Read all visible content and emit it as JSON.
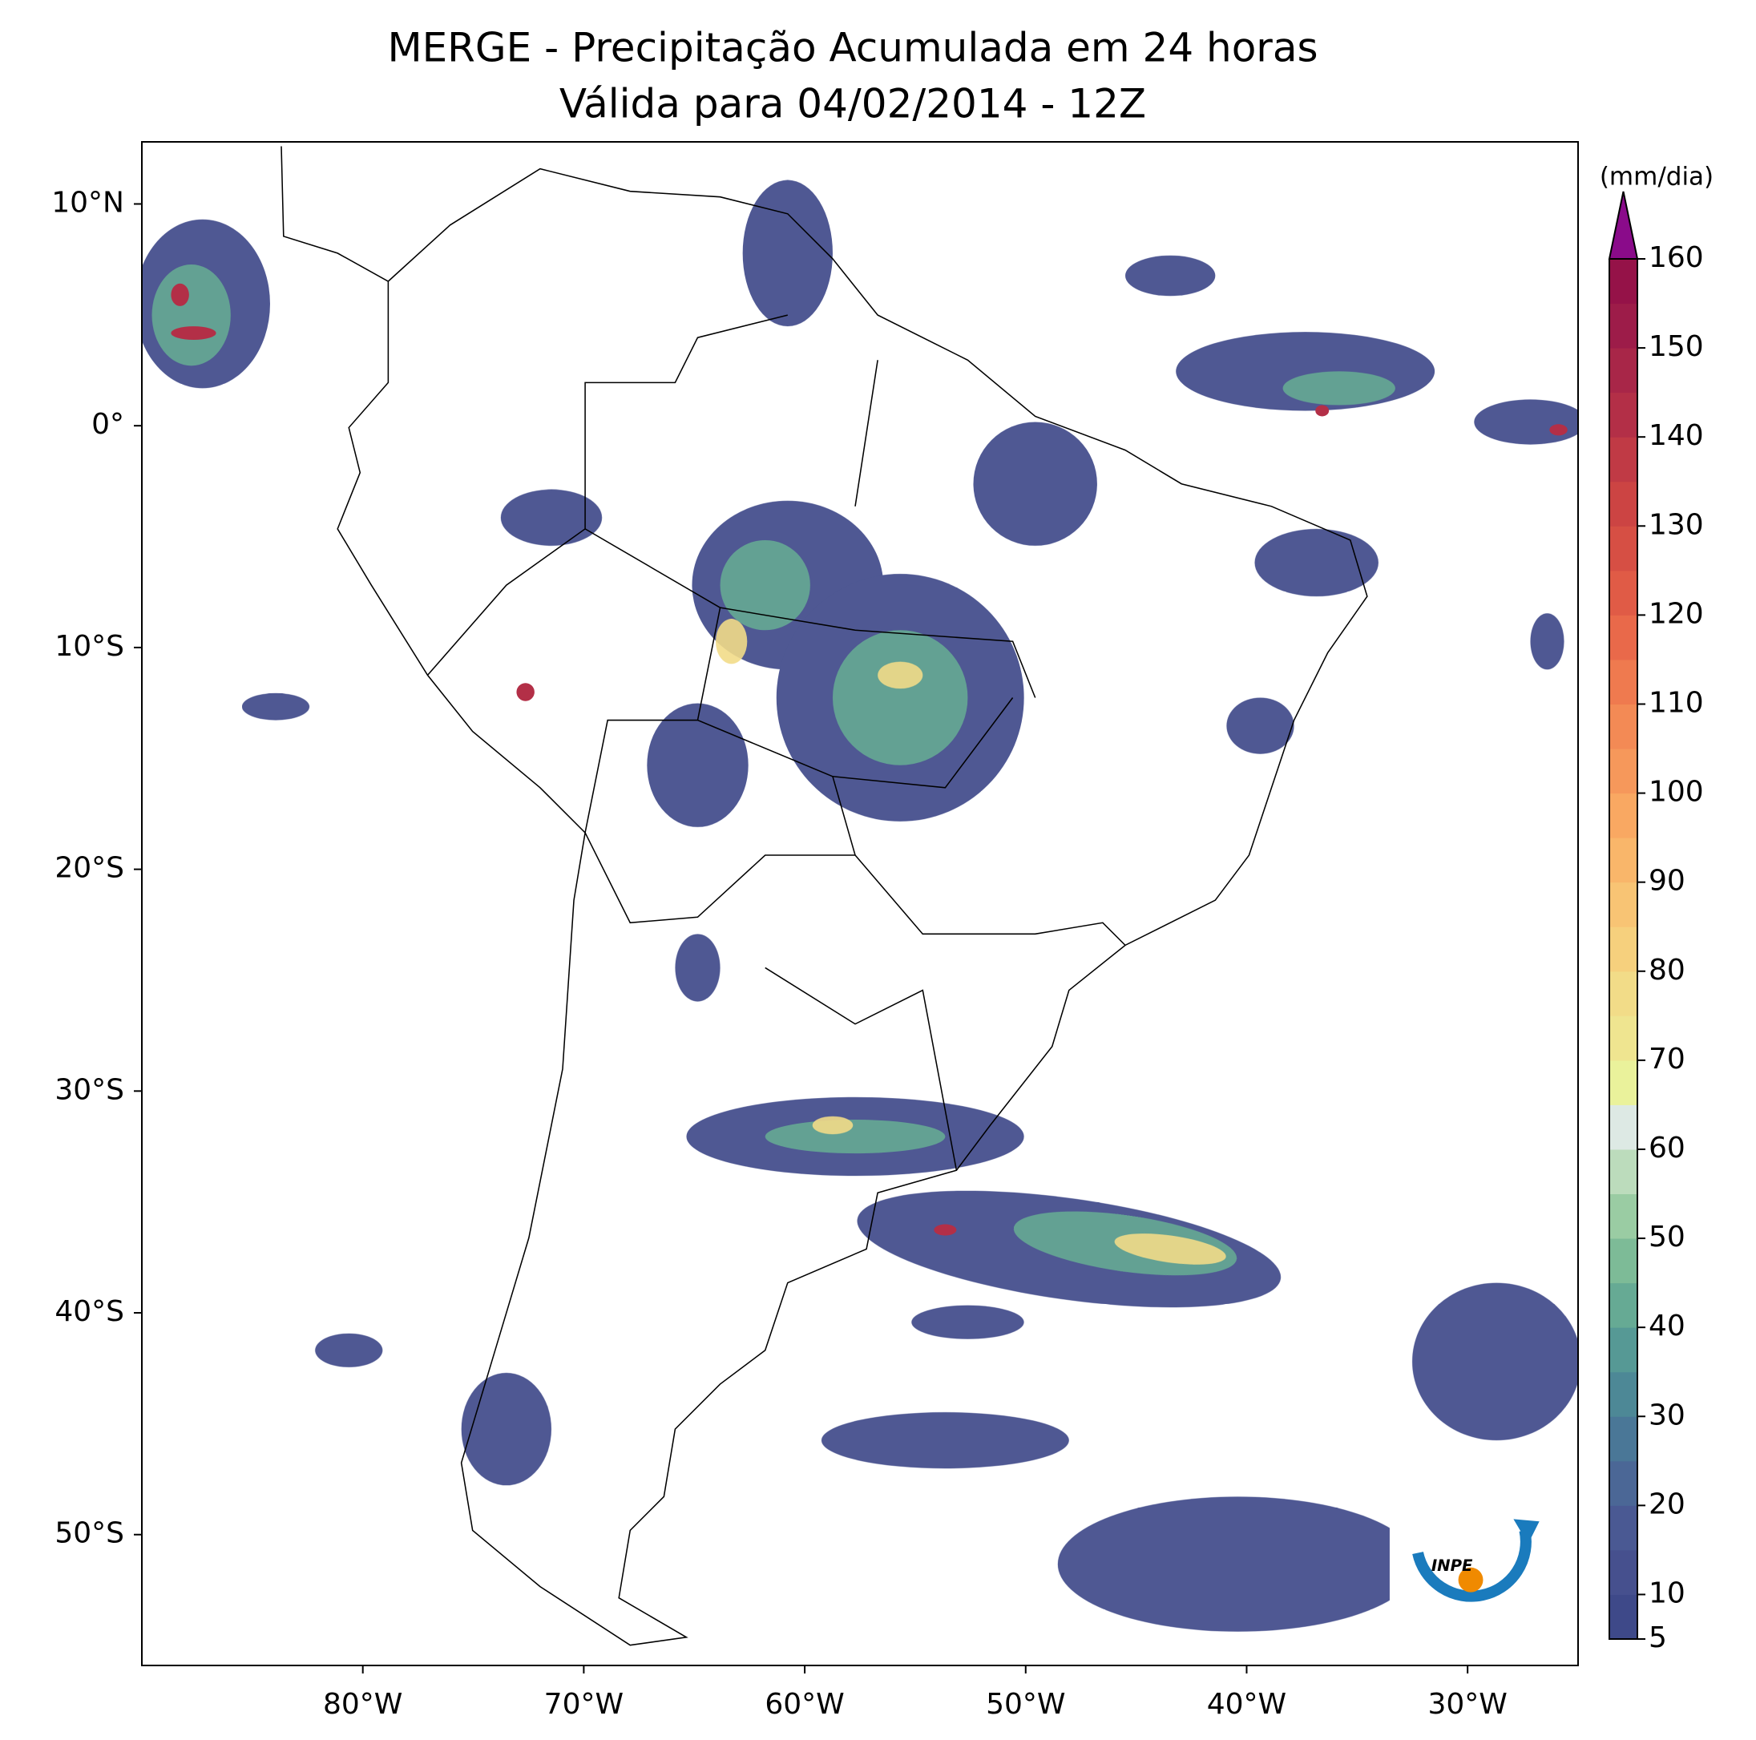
{
  "title": "MERGE - Precipitação Acumulada em 24 horas",
  "subtitle": "Válida para 04/02/2014 - 12Z",
  "map": {
    "xlim": [
      -90,
      -25
    ],
    "ylim": [
      -55.9,
      12.8
    ],
    "xticks": [
      {
        "value": -80,
        "label": "80°W"
      },
      {
        "value": -70,
        "label": "70°W"
      },
      {
        "value": -60,
        "label": "60°W"
      },
      {
        "value": -50,
        "label": "50°W"
      },
      {
        "value": -40,
        "label": "40°W"
      },
      {
        "value": -30,
        "label": "30°W"
      }
    ],
    "yticks": [
      {
        "value": 10,
        "label": "10°N"
      },
      {
        "value": 0,
        "label": "0°"
      },
      {
        "value": -10,
        "label": "10°S"
      },
      {
        "value": -20,
        "label": "20°S"
      },
      {
        "value": -30,
        "label": "30°S"
      },
      {
        "value": -40,
        "label": "40°S"
      },
      {
        "value": -50,
        "label": "50°S"
      }
    ]
  },
  "colorbar": {
    "label": "(mm/dia)",
    "ticks": [
      5,
      10,
      20,
      30,
      40,
      50,
      60,
      70,
      80,
      90,
      100,
      110,
      120,
      130,
      140,
      150,
      160
    ],
    "colors": [
      "#3e4989",
      "#46508e",
      "#4a5993",
      "#4b6796",
      "#4a7797",
      "#4d8896",
      "#569995",
      "#66aa94",
      "#7dbb97",
      "#9acca3",
      "#bcdcbc",
      "#dde9e4",
      "#eaf29b",
      "#efe590",
      "#f2dc88",
      "#f6d07d",
      "#f8c474",
      "#f9b66a",
      "#f9a862",
      "#f6985b",
      "#f38a55",
      "#ef7a4f",
      "#e9694a",
      "#e05b46",
      "#d64f44",
      "#cc4443",
      "#c03a45",
      "#b32f47",
      "#a82648",
      "#9d1c49",
      "#951248"
    ],
    "extend_color": "#8a0b8a"
  },
  "logo": "INPE"
}
